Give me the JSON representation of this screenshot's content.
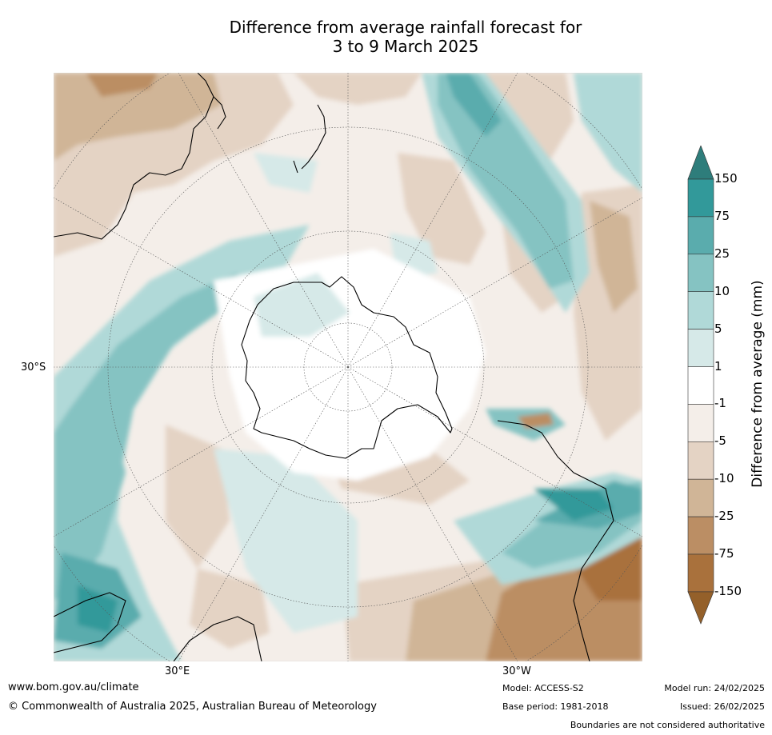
{
  "title": {
    "line1": "Difference from average rainfall forecast for",
    "line2": "3 to 9 March 2025"
  },
  "map": {
    "projection": "south-polar-stereographic",
    "labels": {
      "lat_30s": "30°S",
      "lon_30e": "30°E",
      "lon_30w": "30°W"
    }
  },
  "colorbar": {
    "title": "Difference from average (mm)",
    "ticks": [
      "150",
      "75",
      "25",
      "10",
      "5",
      "1",
      "-1",
      "-5",
      "-10",
      "-25",
      "-75",
      "-150"
    ],
    "colors": [
      "#2e7d7b",
      "#32999a",
      "#5aacad",
      "#85c3c2",
      "#b0d9d8",
      "#d6e9e8",
      "#ffffff",
      "#f4eee9",
      "#e4d3c4",
      "#d0b597",
      "#bb8e64",
      "#a9713c",
      "#94602a"
    ]
  },
  "footer": {
    "url": "www.bom.gov.au/climate",
    "copyright": "© Commonwealth of Australia 2025, Australian Bureau of Meteorology",
    "model": "Model: ACCESS-S2",
    "base_period": "Base period: 1981-2018",
    "model_run": "Model run: 24/02/2025",
    "issued": "Issued: 26/02/2025",
    "disclaimer": "Boundaries are not considered authoritative"
  }
}
